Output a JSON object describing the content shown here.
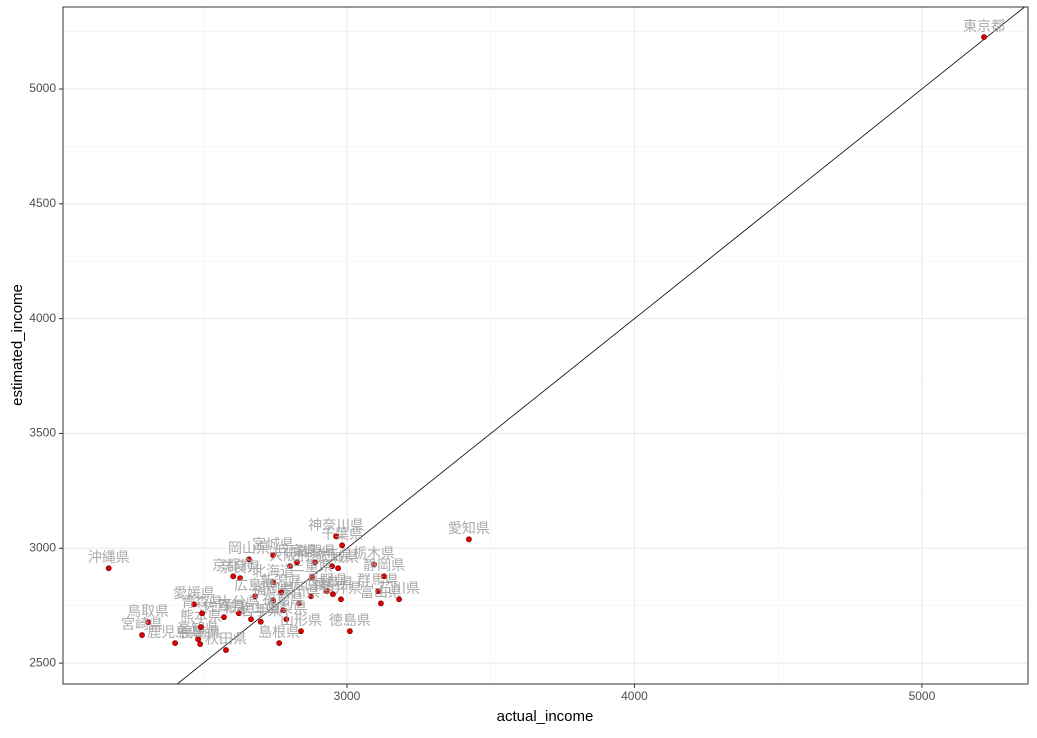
{
  "chart_data": {
    "type": "scatter",
    "x_label": "actual_income",
    "y_label": "estimated_income",
    "color": "#e00000",
    "grid": true,
    "xlim": [
      2012,
      5369
    ],
    "ylim": [
      2409,
      5357
    ],
    "xticks": [
      3000,
      4000,
      5000
    ],
    "yticks": [
      2500,
      3000,
      3500,
      4000,
      4500,
      5000
    ],
    "labels": [
      "東京都",
      "愛知県",
      "沖縄県",
      "神奈川県",
      "千葉県",
      "岡山県",
      "京都府",
      "奈良県",
      "宮城県",
      "大阪府",
      "兵庫県",
      "滋賀県",
      "埼玉県",
      "茨城県",
      "栃木県",
      "静岡県",
      "群馬県",
      "富山県",
      "石川県",
      "三重県",
      "長野県",
      "福井県",
      "岐阜県",
      "山口県",
      "香川県",
      "北海道",
      "広島県",
      "福岡県",
      "新潟県",
      "福島県",
      "山梨県",
      "和歌山県",
      "大分県",
      "佐賀県",
      "愛媛県",
      "鳥取県",
      "宮崎県",
      "鹿児島県",
      "高知県",
      "長崎県",
      "秋田県",
      "熊本県",
      "島根県",
      "山形県",
      "徳島県",
      "青森県",
      "岩手県"
    ],
    "x": [
      5216,
      3424,
      2171,
      2962,
      2983,
      2659,
      2604,
      2628,
      2743,
      2802,
      2826,
      2889,
      2948,
      2969,
      3094,
      3129,
      3108,
      3118,
      3181,
      2878,
      2930,
      2979,
      2951,
      2875,
      2833,
      2743,
      2680,
      2743,
      2771,
      2778,
      2789,
      2666,
      2624,
      2572,
      2468,
      2308,
      2287,
      2402,
      2482,
      2489,
      2579,
      2492,
      2764,
      2840,
      3010,
      2496,
      2700
    ],
    "values": [
      5226,
      3039,
      2913,
      3052,
      3013,
      2952,
      2878,
      2870,
      2970,
      2922,
      2939,
      2939,
      2922,
      2913,
      2930,
      2878,
      2813,
      2760,
      2778,
      2873,
      2813,
      2778,
      2800,
      2791,
      2760,
      2852,
      2791,
      2773,
      2808,
      2730,
      2691,
      2691,
      2717,
      2700,
      2756,
      2678,
      2622,
      2587,
      2604,
      2583,
      2557,
      2657,
      2587,
      2639,
      2639,
      2717,
      2680
    ]
  }
}
